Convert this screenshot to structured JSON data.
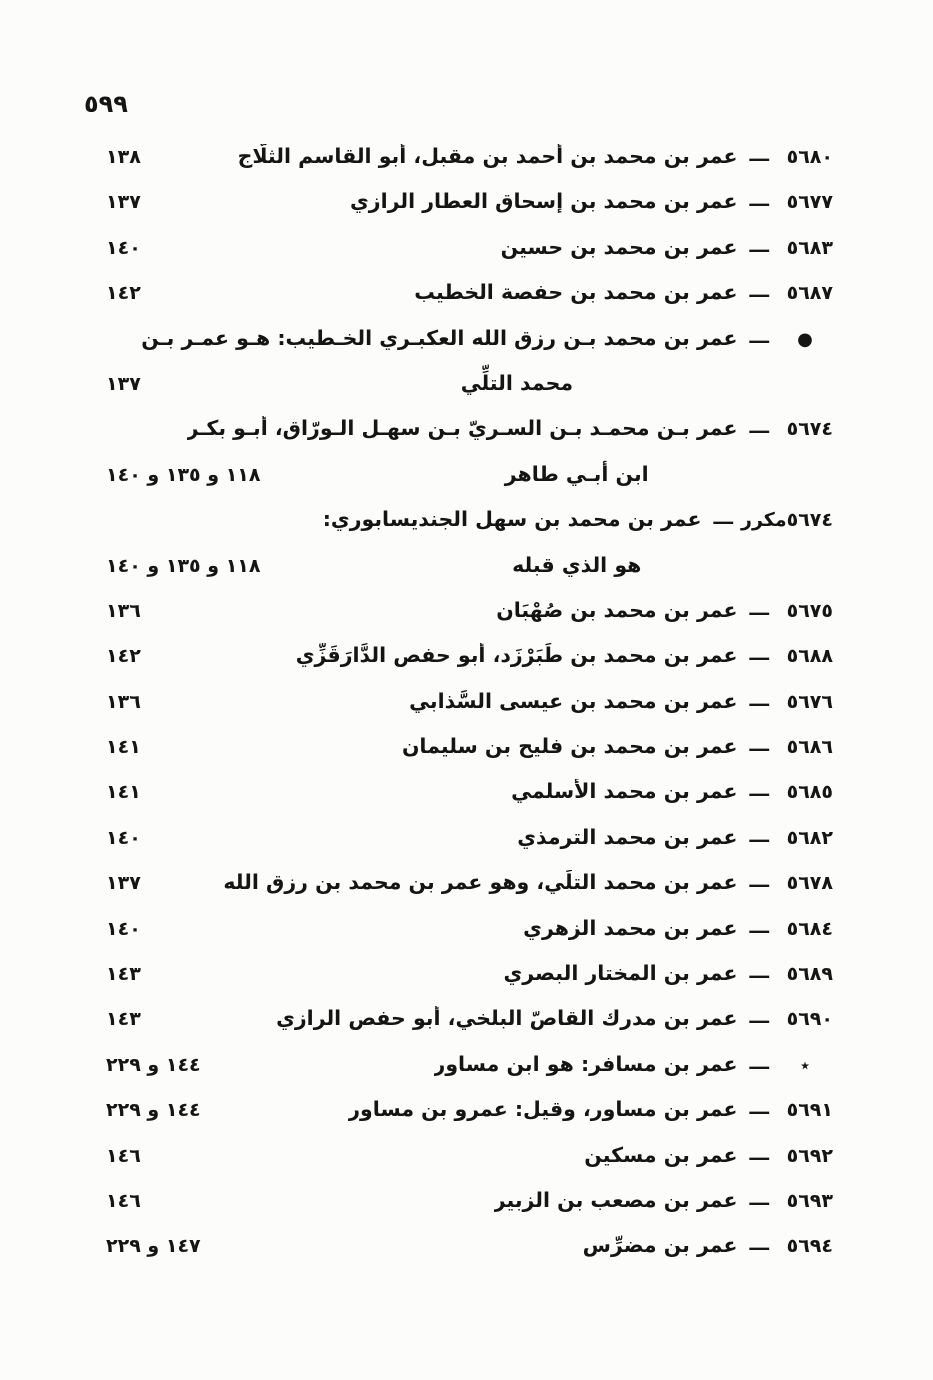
{
  "page": {
    "number": "٥٩٩"
  },
  "separator": "ـــ",
  "index": {
    "entries": [
      {
        "num": "٥٦٨٠",
        "name": "عمر بن محمد بن أحمد بن مقبل، أبو القاسم الثلّاج",
        "pages": "١٣٨"
      },
      {
        "num": "٥٦٧٧",
        "name": "عمر بن محمد بن إسحاق العطار الرازي",
        "pages": "١٣٧"
      },
      {
        "num": "٥٦٨٣",
        "name": "عمر بن محمد بن حسين",
        "pages": "١٤٠"
      },
      {
        "num": "٥٦٨٧",
        "name": "عمر بن محمد بن حفصة الخطيب",
        "pages": "١٤٢"
      },
      {
        "num": "●",
        "name": "عمر بن محمد بـن رزق الله العكبـري الخـطيب: هـو عمـر بـن",
        "cont": "محمد التلِّي",
        "pages": "١٣٧"
      },
      {
        "num": "٥٦٧٤",
        "name": "عمر بـن محمـد بـن السـريّ بـن سهـل الـورّاق، أبـو بكـر",
        "cont": "ابن أبـي طاهر",
        "pages": "١١٨ و ١٣٥ و ١٤٠"
      },
      {
        "num": "٥٦٧٤مكرر",
        "name": "عمر بن محمد بن سهل الجنديسابوري:",
        "cont": "هو الذي قبله",
        "pages": "١١٨ و ١٣٥ و ١٤٠"
      },
      {
        "num": "٥٦٧٥",
        "name": "عمر بن محمد بن صُهْبَان",
        "pages": "١٣٦"
      },
      {
        "num": "٥٦٨٨",
        "name": "عمر بن محمد بن طَبَرْزَد، أبو حفص الدَّارَقَزِّي",
        "pages": "١٤٢"
      },
      {
        "num": "٥٦٧٦",
        "name": "عمر بن محمد بن عيسى السَّذابي",
        "pages": "١٣٦"
      },
      {
        "num": "٥٦٨٦",
        "name": "عمر بن محمد بن فليح بن سليمان",
        "pages": "١٤١"
      },
      {
        "num": "٥٦٨٥",
        "name": "عمر بن محمد الأسلمي",
        "pages": "١٤١"
      },
      {
        "num": "٥٦٨٢",
        "name": "عمر بن محمد الترمذي",
        "pages": "١٤٠"
      },
      {
        "num": "٥٦٧٨",
        "name": "عمر بن محمد التلِّي، وهو عمر بن محمد بن رزق الله",
        "pages": "١٣٧"
      },
      {
        "num": "٥٦٨٤",
        "name": "عمر بن محمد الزهري",
        "pages": "١٤٠"
      },
      {
        "num": "٥٦٨٩",
        "name": "عمر بن المختار البصري",
        "pages": "١٤٣"
      },
      {
        "num": "٥٦٩٠",
        "name": "عمر بن مدرك القاصّ البلخي، أبو حفص الرازي",
        "pages": "١٤٣"
      },
      {
        "num": "٭",
        "name": "عمر بن مسافر: هو ابن مساور",
        "pages": "١٤٤ و ٢٢٩"
      },
      {
        "num": "٥٦٩١",
        "name": "عمر بن مساور، وقيل: عمرو بن مساور",
        "pages": "١٤٤ و ٢٢٩"
      },
      {
        "num": "٥٦٩٢",
        "name": "عمر بن مسكين",
        "pages": "١٤٦"
      },
      {
        "num": "٥٦٩٣",
        "name": "عمر بن مصعب بن الزبير",
        "pages": "١٤٦"
      },
      {
        "num": "٥٦٩٤",
        "name": "عمر بن مضرِّس",
        "pages": "١٤٧ و ٢٢٩"
      }
    ]
  }
}
